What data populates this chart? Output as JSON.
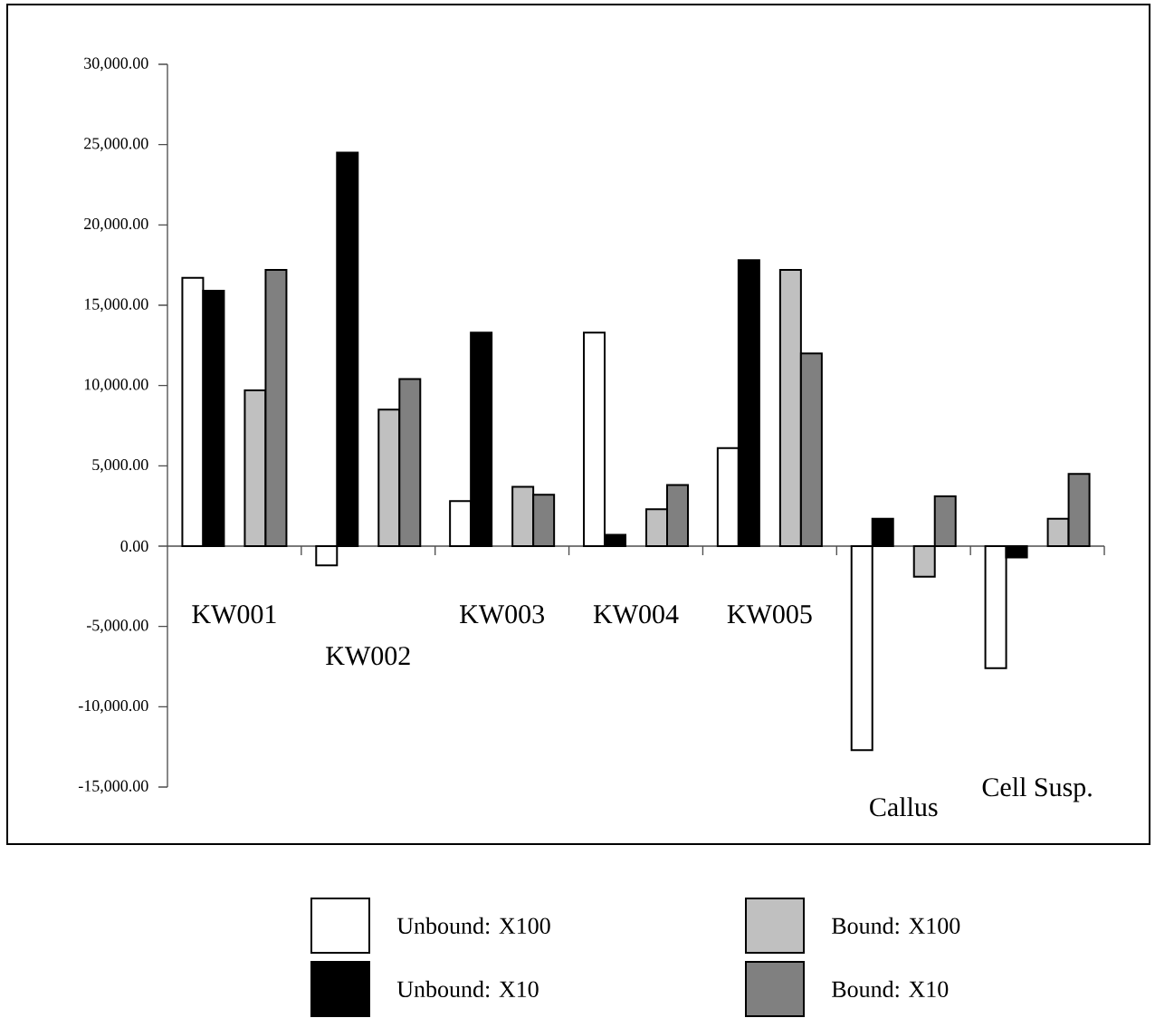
{
  "chart_data": {
    "type": "bar",
    "categories": [
      "KW001",
      "KW002",
      "KW003",
      "KW004",
      "KW005",
      "Callus",
      "Cell Susp."
    ],
    "series": [
      {
        "name": "Unbound: X100",
        "color": "#ffffff",
        "values": [
          16700,
          -1200,
          2800,
          13300,
          6100,
          -12700,
          -7600
        ]
      },
      {
        "name": "Unbound: X10",
        "color": "#000000",
        "values": [
          15900,
          24500,
          13300,
          700,
          17800,
          1700,
          -700
        ]
      },
      {
        "name": "Bound: X100",
        "color": "#c0c0c0",
        "values": [
          9700,
          8500,
          3700,
          2300,
          17200,
          -1900,
          1700
        ]
      },
      {
        "name": "Bound: X10",
        "color": "#808080",
        "values": [
          17200,
          10400,
          3200,
          3800,
          12000,
          3100,
          4500
        ]
      }
    ],
    "ylim": [
      -15000,
      30000
    ],
    "yticks": [
      {
        "value": -15000,
        "label": "-15,000.00"
      },
      {
        "value": -10000,
        "label": "-10,000.00"
      },
      {
        "value": -5000,
        "label": "-5,000.00"
      },
      {
        "value": 0,
        "label": "0.00"
      },
      {
        "value": 5000,
        "label": "5,000.00"
      },
      {
        "value": 10000,
        "label": "10,000.00"
      },
      {
        "value": 15000,
        "label": "15,000.00"
      },
      {
        "value": 20000,
        "label": "20,000.00"
      },
      {
        "value": 25000,
        "label": "25,000.00"
      },
      {
        "value": 30000,
        "label": "30,000.00"
      }
    ],
    "grid": false,
    "legend": "bottom"
  }
}
